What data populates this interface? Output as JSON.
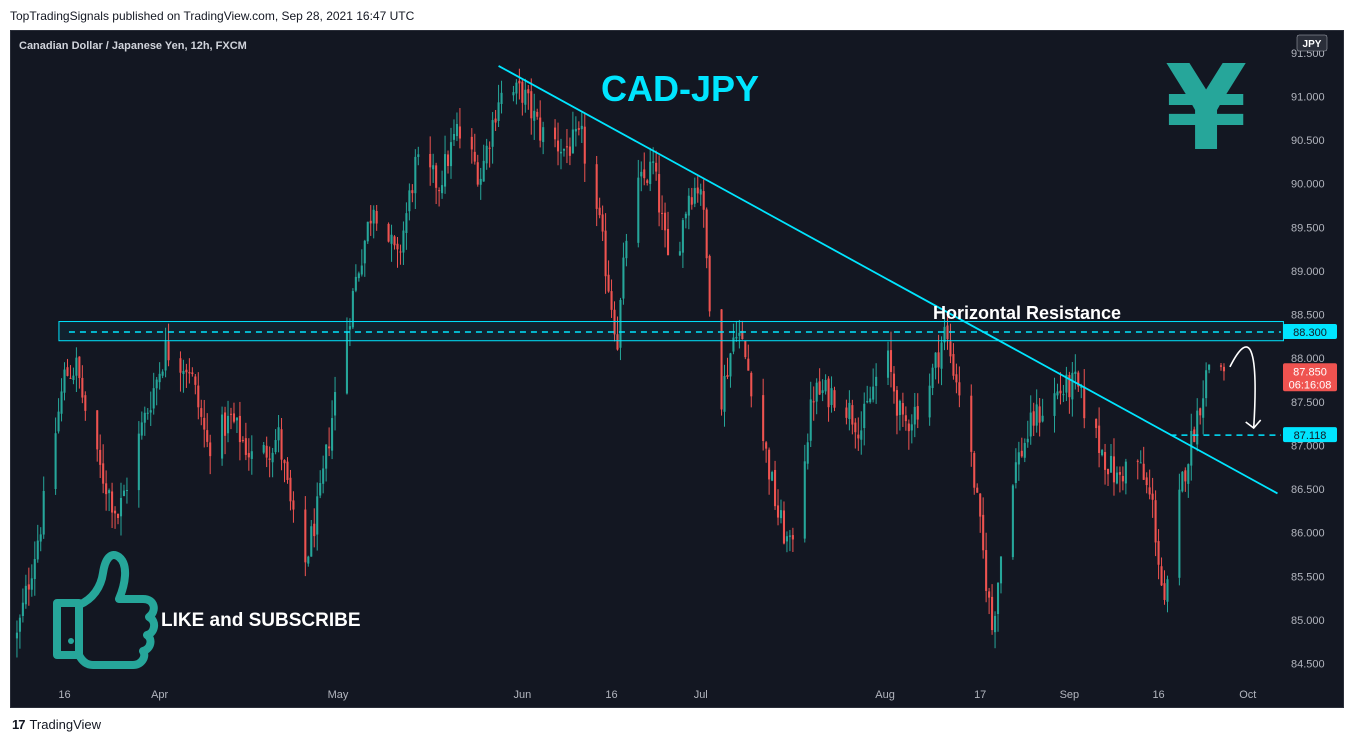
{
  "header": {
    "publisher_line": "TopTradingSignals published on TradingView.com, Sep 28, 2021 16:47 UTC"
  },
  "footer": {
    "brand": "TradingView",
    "logo_icon": "tradingview-logo-icon"
  },
  "chart": {
    "instrument_label": "Canadian Dollar / Japanese Yen, 12h, FXCM",
    "currency_badge": "JPY",
    "title_overlay": "CAD-JPY",
    "yen_symbol": "¥",
    "resistance_label": "Horizontal Resistance",
    "like_text": "LIKE and SUBSCRIBE",
    "countdown": "06:16:08",
    "colors": {
      "background": "#131722",
      "bull": "#26a69a",
      "bear": "#ef5350",
      "cyan": "#00e5ff",
      "teal_icon": "#26a69a",
      "axis_text": "#b2b5be"
    }
  },
  "chart_data": {
    "type": "candlestick",
    "ylim": [
      84.3,
      91.75
    ],
    "y_ticks": [
      84.5,
      85.0,
      85.5,
      86.0,
      86.5,
      87.0,
      87.5,
      88.0,
      88.5,
      89.0,
      89.5,
      90.0,
      90.5,
      91.0,
      91.5
    ],
    "y_tick_labels": [
      "84.500",
      "85.000",
      "85.500",
      "86.000",
      "86.500",
      "87.000",
      "87.500",
      "88.000",
      "88.500",
      "89.000",
      "89.500",
      "90.000",
      "90.500",
      "91.000",
      "91.500"
    ],
    "x_ticks": [
      {
        "label": "16",
        "date": "2021-03-16"
      },
      {
        "label": "Apr",
        "date": "2021-04-01"
      },
      {
        "label": "May",
        "date": "2021-05-01"
      },
      {
        "label": "Jun",
        "date": "2021-06-01"
      },
      {
        "label": "16",
        "date": "2021-06-16"
      },
      {
        "label": "Jul",
        "date": "2021-07-01"
      },
      {
        "label": "Aug",
        "date": "2021-08-01"
      },
      {
        "label": "17",
        "date": "2021-08-17"
      },
      {
        "label": "Sep",
        "date": "2021-09-01"
      },
      {
        "label": "16",
        "date": "2021-09-16"
      },
      {
        "label": "Oct",
        "date": "2021-10-01"
      }
    ],
    "close_path": [
      {
        "date": "2021-03-08",
        "close": 84.8
      },
      {
        "date": "2021-03-12",
        "close": 86.1
      },
      {
        "date": "2021-03-16",
        "close": 87.8
      },
      {
        "date": "2021-03-18",
        "close": 87.9
      },
      {
        "date": "2021-03-21",
        "close": 86.9
      },
      {
        "date": "2021-03-25",
        "close": 86.2
      },
      {
        "date": "2021-03-29",
        "close": 87.2
      },
      {
        "date": "2021-04-02",
        "close": 88.1
      },
      {
        "date": "2021-04-06",
        "close": 87.9
      },
      {
        "date": "2021-04-09",
        "close": 87.0
      },
      {
        "date": "2021-04-13",
        "close": 87.3
      },
      {
        "date": "2021-04-17",
        "close": 86.8
      },
      {
        "date": "2021-04-21",
        "close": 87.1
      },
      {
        "date": "2021-04-25",
        "close": 85.5
      },
      {
        "date": "2021-04-28",
        "close": 86.4
      },
      {
        "date": "2021-05-01",
        "close": 87.8
      },
      {
        "date": "2021-05-04",
        "close": 88.9
      },
      {
        "date": "2021-05-07",
        "close": 89.8
      },
      {
        "date": "2021-05-11",
        "close": 89.1
      },
      {
        "date": "2021-05-14",
        "close": 90.2
      },
      {
        "date": "2021-05-18",
        "close": 90.0
      },
      {
        "date": "2021-05-21",
        "close": 90.6
      },
      {
        "date": "2021-05-25",
        "close": 90.1
      },
      {
        "date": "2021-05-28",
        "close": 91.0
      },
      {
        "date": "2021-06-01",
        "close": 91.05
      },
      {
        "date": "2021-06-04",
        "close": 90.6
      },
      {
        "date": "2021-06-08",
        "close": 90.4
      },
      {
        "date": "2021-06-11",
        "close": 90.5
      },
      {
        "date": "2021-06-14",
        "close": 89.5
      },
      {
        "date": "2021-06-17",
        "close": 88.2
      },
      {
        "date": "2021-06-19",
        "close": 89.8
      },
      {
        "date": "2021-06-23",
        "close": 90.2
      },
      {
        "date": "2021-06-26",
        "close": 88.9
      },
      {
        "date": "2021-06-29",
        "close": 89.9
      },
      {
        "date": "2021-07-01",
        "close": 90.0
      },
      {
        "date": "2021-07-04",
        "close": 87.4
      },
      {
        "date": "2021-07-07",
        "close": 88.4
      },
      {
        "date": "2021-07-10",
        "close": 87.6
      },
      {
        "date": "2021-07-14",
        "close": 86.2
      },
      {
        "date": "2021-07-16",
        "close": 85.8
      },
      {
        "date": "2021-07-20",
        "close": 87.6
      },
      {
        "date": "2021-07-24",
        "close": 87.6
      },
      {
        "date": "2021-07-28",
        "close": 87.2
      },
      {
        "date": "2021-08-01",
        "close": 88.1
      },
      {
        "date": "2021-08-04",
        "close": 87.2
      },
      {
        "date": "2021-08-08",
        "close": 87.6
      },
      {
        "date": "2021-08-11",
        "close": 88.3
      },
      {
        "date": "2021-08-14",
        "close": 87.5
      },
      {
        "date": "2021-08-16",
        "close": 86.6
      },
      {
        "date": "2021-08-19",
        "close": 84.9
      },
      {
        "date": "2021-08-22",
        "close": 86.6
      },
      {
        "date": "2021-08-26",
        "close": 87.3
      },
      {
        "date": "2021-08-30",
        "close": 87.6
      },
      {
        "date": "2021-09-02",
        "close": 87.7
      },
      {
        "date": "2021-09-06",
        "close": 87.0
      },
      {
        "date": "2021-09-09",
        "close": 86.6
      },
      {
        "date": "2021-09-12",
        "close": 86.9
      },
      {
        "date": "2021-09-15",
        "close": 86.3
      },
      {
        "date": "2021-09-17",
        "close": 85.1
      },
      {
        "date": "2021-09-20",
        "close": 86.6
      },
      {
        "date": "2021-09-23",
        "close": 87.5
      },
      {
        "date": "2021-09-25",
        "close": 88.1
      },
      {
        "date": "2021-09-27",
        "close": 87.85
      }
    ],
    "last_price": 87.85,
    "last_price_label": "87.850",
    "horizontal_resistance": {
      "price": 88.3,
      "label": "88.300",
      "zone": [
        88.2,
        88.42
      ],
      "zone_dates": [
        "2021-03-08",
        "2021-10-07"
      ]
    },
    "target_level": {
      "price": 87.118,
      "label": "87.118",
      "from_date": "2021-09-18"
    },
    "trendline": {
      "start": {
        "date": "2021-05-28",
        "price": 91.35
      },
      "end": {
        "date": "2021-10-06",
        "price": 86.45
      }
    },
    "arrow_projection": {
      "start": {
        "date": "2021-09-28",
        "price": 87.9
      },
      "end": {
        "date": "2021-10-02",
        "price": 87.2
      }
    }
  }
}
